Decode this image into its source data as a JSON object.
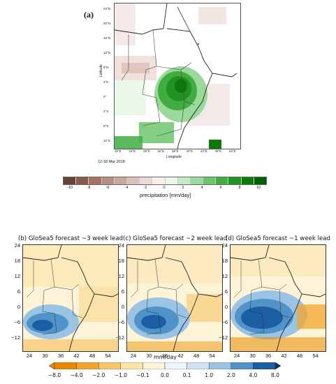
{
  "panel_a": {
    "label": "(a)",
    "date": "12-18 Mar 2018",
    "xlabel": "Longitude",
    "ylabel": "Latitude",
    "lon_ticks": [
      "20°E",
      "24°E",
      "28°E",
      "32°E",
      "36°E",
      "40°E",
      "44°E",
      "48°E",
      "52°E"
    ],
    "lat_ticks": [
      "24°N",
      "20°N",
      "16°N",
      "12°N",
      "8°N",
      "4°N",
      "0°",
      "4°S",
      "8°S",
      "12°S"
    ],
    "colorbar": {
      "title": "precipitation [mm/day]",
      "ticks": [
        "-10",
        "-8",
        "-6",
        "-4",
        "-2",
        "0",
        "2",
        "4",
        "6",
        "8",
        "10"
      ],
      "colors": [
        "#6b3f36",
        "#8a5a4e",
        "#a47366",
        "#b98d82",
        "#cba59b",
        "#dcbfb7",
        "#ecd9d4",
        "#f8eeeb",
        "#e8f7e8",
        "#c5eac5",
        "#99d999",
        "#6cc56c",
        "#41ad41",
        "#209320",
        "#0b7a0b",
        "#006000"
      ]
    }
  },
  "panels": [
    {
      "title": "(b) GloSea5 forecast ~3 week lead"
    },
    {
      "title": "(c) GloSea5 forecast ~2 week lead"
    },
    {
      "title": "(d) GloSea5 forecast ~1 week lead"
    }
  ],
  "small_axes": {
    "y_ticks": [
      "24",
      "18",
      "12",
      "6",
      "0",
      "−6",
      "−12"
    ],
    "x_ticks": [
      "24",
      "30",
      "36",
      "42",
      "48",
      "54"
    ]
  },
  "colorbar_b": {
    "title": "mm/day",
    "ticks": [
      "−8.0",
      "−4.0",
      "−2.0",
      "−1.0",
      "−0.1",
      "0.0",
      "0.1",
      "1.0",
      "2.0",
      "4.0",
      "8.0"
    ],
    "colors": [
      "#e58a00",
      "#f2a52e",
      "#f7c56a",
      "#fbe2a8",
      "#fdf4d8",
      "#eef4fb",
      "#cfe1f2",
      "#9ac3e4",
      "#4f93c8",
      "#1c5ea3"
    ]
  },
  "colors": {
    "rain_anomaly_green": "#1f8f1f",
    "wet_blue": "#1f5fa8",
    "dry_orange": "#f0b04a",
    "coastline": "#222222"
  }
}
